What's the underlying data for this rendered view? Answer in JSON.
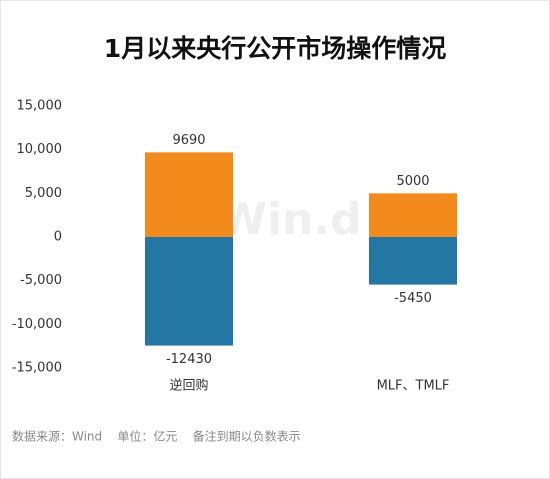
{
  "chart_data": {
    "type": "bar",
    "stacked": true,
    "title": "1月以来央行公开市场操作情况",
    "watermark": "Win.d",
    "categories": [
      "逆回购",
      "MLF、TMLF"
    ],
    "series": [
      {
        "color": "#f28a1c",
        "values": [
          9690,
          5000
        ]
      },
      {
        "color": "#2278a3",
        "values": [
          -12430,
          -5450
        ]
      }
    ],
    "ylim": [
      -15000,
      15000
    ],
    "yticks": [
      {
        "value": 15000,
        "label": "15,000"
      },
      {
        "value": 10000,
        "label": "10,000"
      },
      {
        "value": 5000,
        "label": "5,000"
      },
      0,
      {
        "value": -5000,
        "label": "-5,000"
      },
      {
        "value": -10000,
        "label": "-10,000"
      },
      {
        "value": -15000,
        "label": "-15,000"
      }
    ],
    "grid": false,
    "footnote": "数据来源：Wind    单位：亿元    备注到期以负数表示"
  }
}
